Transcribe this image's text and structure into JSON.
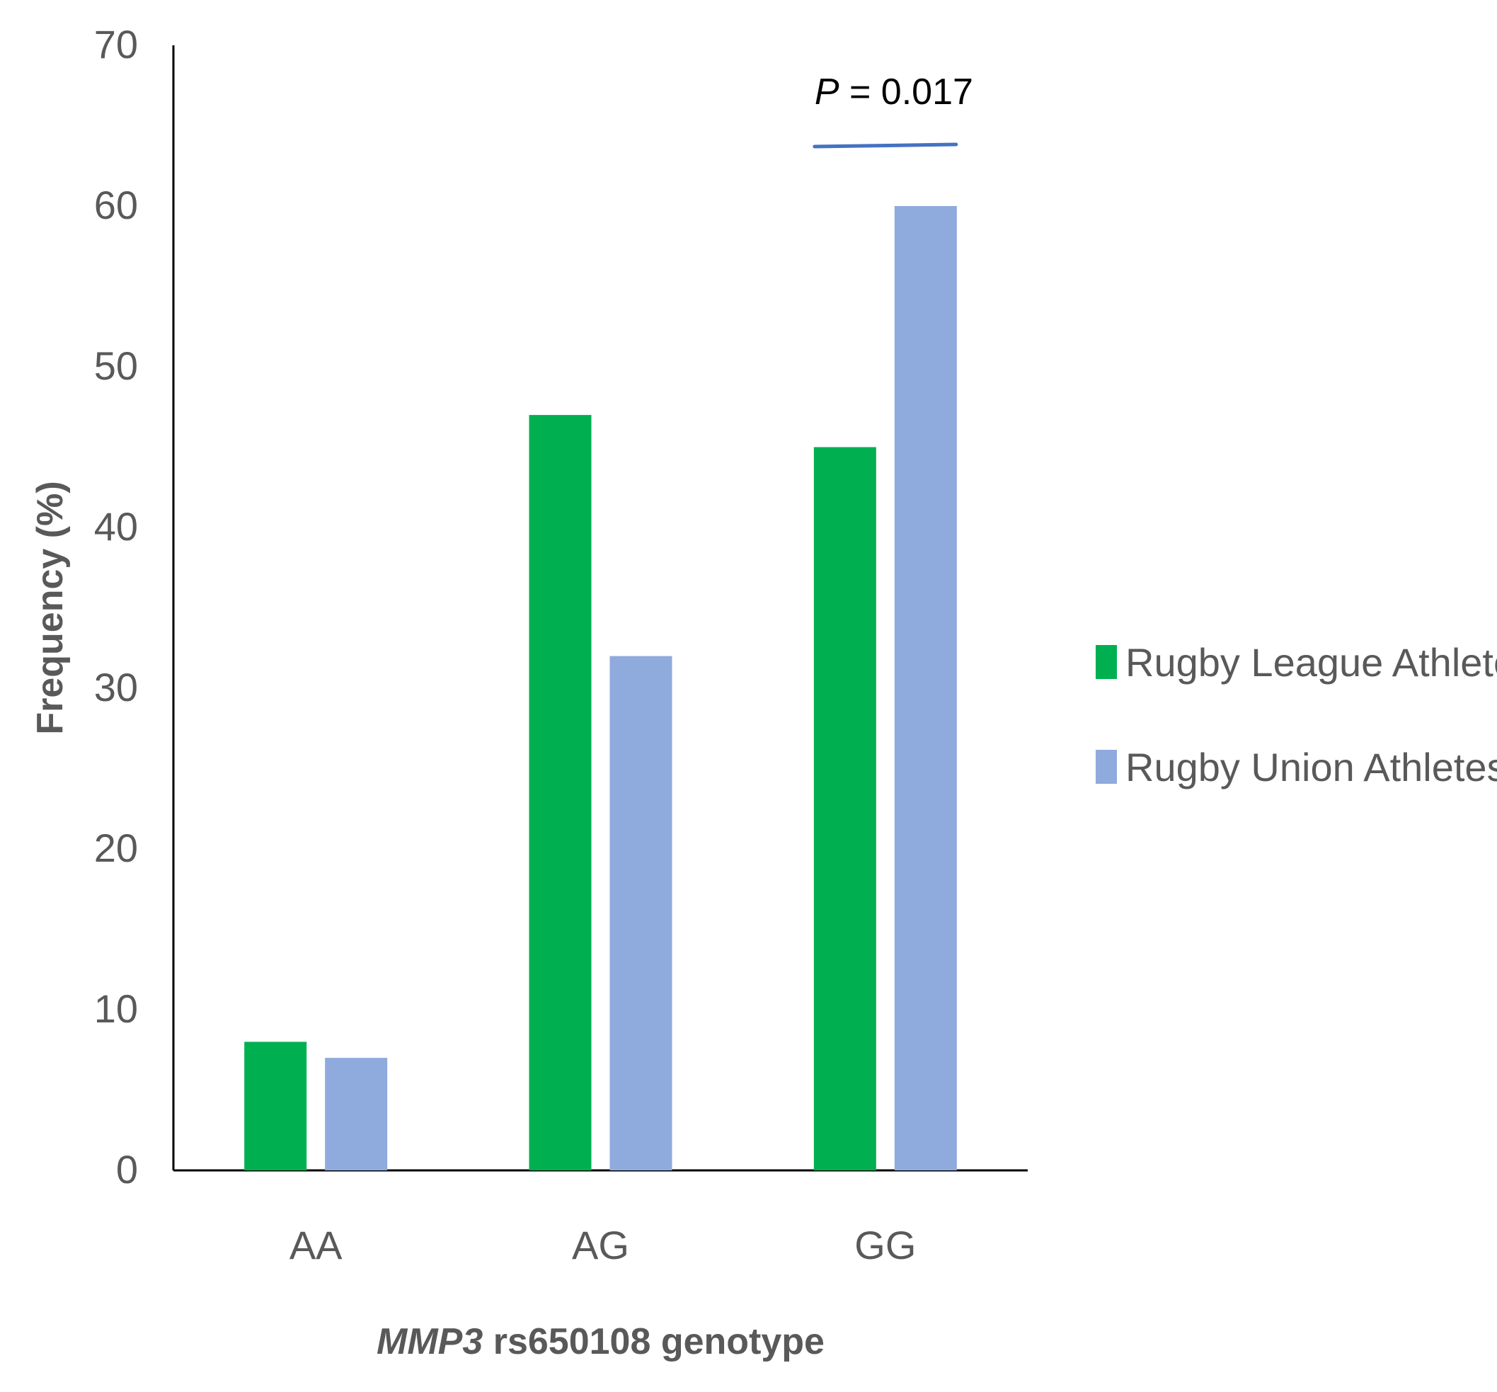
{
  "chart_data": {
    "type": "bar",
    "categories": [
      "AA",
      "AG",
      "GG"
    ],
    "series": [
      {
        "name": "Rugby League Athletes",
        "color": "#00b050",
        "values": [
          8,
          47,
          45
        ]
      },
      {
        "name": "Rugby Union Athletes",
        "color": "#8faadc",
        "values": [
          7,
          32,
          60
        ]
      }
    ],
    "ylabel": "Frequency (%)",
    "xlabel_italic": "MMP3",
    "xlabel_rest": " rs650108 genotype",
    "ylim": [
      0,
      70
    ],
    "yticks": [
      0,
      10,
      20,
      30,
      40,
      50,
      60,
      70
    ],
    "grid": false,
    "legend_position": "right",
    "annotation": {
      "italic": "P",
      "rest": " = 0.017",
      "category": "GG",
      "line_color": "#4472c4"
    }
  }
}
